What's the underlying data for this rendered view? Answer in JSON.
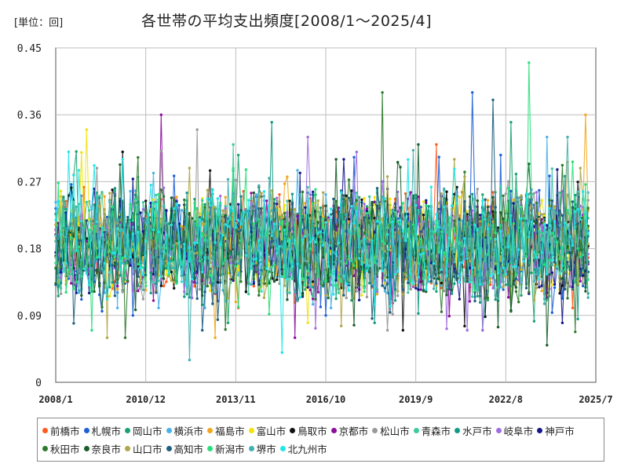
{
  "unit_label": "[単位：回]",
  "chart_data": {
    "type": "line",
    "title": "各世帯の平均支出頻度[2008/1～2025/4]",
    "xlabel": "",
    "ylabel": "",
    "ylim": [
      0,
      0.45
    ],
    "yticks": [
      "0",
      "0.09",
      "0.18",
      "0.27",
      "0.36",
      "0.45"
    ],
    "xticks": [
      "2008/1",
      "2010/12",
      "2013/11",
      "2016/10",
      "2019/9",
      "2022/8",
      "2025/7"
    ],
    "x_start": "2008/1",
    "x_end": "2025/4",
    "grid": true,
    "legend_position": "bottom",
    "series": [
      {
        "name": "前橋市",
        "color": "#ff5b1f",
        "peak": 0.32,
        "low": 0.1
      },
      {
        "name": "札幌市",
        "color": "#1c5fd6",
        "peak": 0.39,
        "low": 0.09
      },
      {
        "name": "岡山市",
        "color": "#1aa36e",
        "peak": 0.35,
        "low": 0.08
      },
      {
        "name": "横浜市",
        "color": "#47b4e8",
        "peak": 0.33,
        "low": 0.1
      },
      {
        "name": "福島市",
        "color": "#f2a71c",
        "peak": 0.36,
        "low": 0.06
      },
      {
        "name": "富山市",
        "color": "#f0e30a",
        "peak": 0.34,
        "low": 0.08
      },
      {
        "name": "鳥取市",
        "color": "#111111",
        "peak": 0.31,
        "low": 0.07
      },
      {
        "name": "京都市",
        "color": "#8c0f9c",
        "peak": 0.36,
        "low": 0.06
      },
      {
        "name": "松山市",
        "color": "#9a9a9a",
        "peak": 0.34,
        "low": 0.07
      },
      {
        "name": "青森市",
        "color": "#3ec9a0",
        "peak": 0.32,
        "low": 0.07
      },
      {
        "name": "水戸市",
        "color": "#139a86",
        "peak": 0.35,
        "low": 0.08
      },
      {
        "name": "岐阜市",
        "color": "#9f6ee0",
        "peak": 0.33,
        "low": 0.07
      },
      {
        "name": "神戸市",
        "color": "#14168a",
        "peak": 0.3,
        "low": 0.08
      },
      {
        "name": "秋田市",
        "color": "#2e7a2c",
        "peak": 0.39,
        "low": 0.06
      },
      {
        "name": "奈良市",
        "color": "#1a5e2a",
        "peak": 0.32,
        "low": 0.05
      },
      {
        "name": "山口市",
        "color": "#b0a74a",
        "peak": 0.3,
        "low": 0.06
      },
      {
        "name": "高知市",
        "color": "#1f5f80",
        "peak": 0.38,
        "low": 0.07
      },
      {
        "name": "新潟市",
        "color": "#28e07a",
        "peak": 0.43,
        "low": 0.07
      },
      {
        "name": "堺市",
        "color": "#42b0b0",
        "peak": 0.33,
        "low": 0.03
      },
      {
        "name": "北九州市",
        "color": "#20e6e6",
        "peak": 0.31,
        "low": 0.04
      }
    ]
  }
}
